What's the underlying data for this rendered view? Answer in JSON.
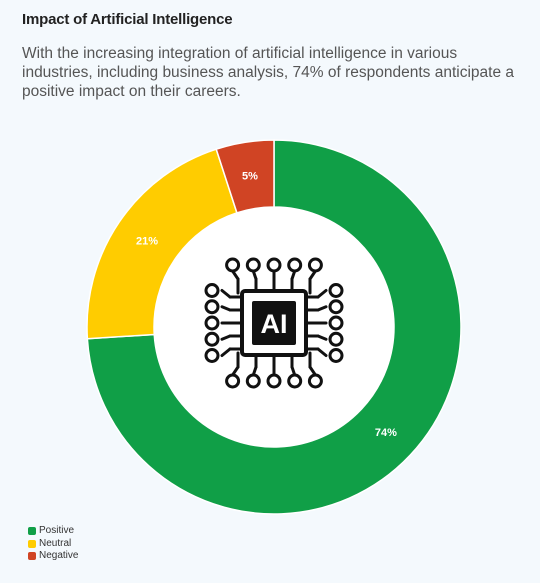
{
  "header": {
    "title": "Impact of Artificial Intelligence",
    "subtitle": "With the increasing integration of artificial intelligence in various industries, including business analysis, 74% of respondents anticipate a positive impact on their careers."
  },
  "center_icon": {
    "name": "ai-chip-icon",
    "label": "AI"
  },
  "chart_data": {
    "type": "pie",
    "donut": true,
    "series": [
      {
        "name": "Positive",
        "value": 74,
        "label": "74%",
        "color": "#109f47"
      },
      {
        "name": "Neutral",
        "value": 21,
        "label": "21%",
        "color": "#ffcc00"
      },
      {
        "name": "Negative",
        "value": 5,
        "label": "5%",
        "color": "#d04424"
      }
    ],
    "legend_position": "bottom-left"
  }
}
